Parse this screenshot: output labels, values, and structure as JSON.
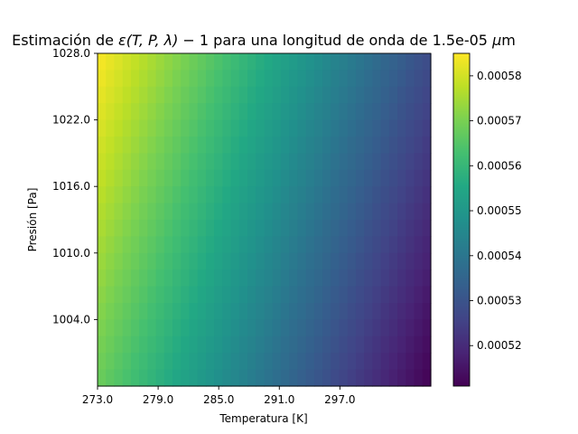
{
  "chart_data": {
    "type": "heatmap",
    "title": "Estimación de ε(T,P,λ)−1 para una longitud de onda de 1.5e-05 μm",
    "title_parts": {
      "prefix": "Estimación de ",
      "math_epsilon": "ε",
      "math_args": "(T, P, λ)",
      "math_minus_one": " − 1",
      "suffix": " para una longitud de onda de 1.5e-05 ",
      "unit_mu": "μ",
      "unit_m": "m"
    },
    "xlabel": "Temperatura [K]",
    "ylabel": "Presión [Pa]",
    "xlim": [
      273,
      306
    ],
    "ylim": [
      998,
      1028
    ],
    "x_ticks": [
      273,
      279,
      285,
      291,
      297
    ],
    "x_tick_labels": [
      "273.0",
      "279.0",
      "285.0",
      "291.0",
      "297.0"
    ],
    "y_ticks": [
      1004,
      1010,
      1016,
      1022,
      1028
    ],
    "y_tick_labels": [
      "1004.0",
      "1010.0",
      "1016.0",
      "1022.0",
      "1028.0"
    ],
    "colormap": "viridis",
    "colorbar": {
      "vmin": 0.000511,
      "vmax": 0.000585,
      "ticks": [
        0.00052,
        0.00053,
        0.00054,
        0.00055,
        0.00056,
        0.00057,
        0.00058
      ],
      "tick_labels": [
        "0.00052",
        "0.00053",
        "0.00054",
        "0.00055",
        "0.00056",
        "0.00057",
        "0.00058"
      ]
    },
    "corner_values": {
      "T273_P1028": 0.000585,
      "T273_P998": 0.000568,
      "T306_P1028": 0.000528,
      "T306_P998": 0.000511
    }
  }
}
